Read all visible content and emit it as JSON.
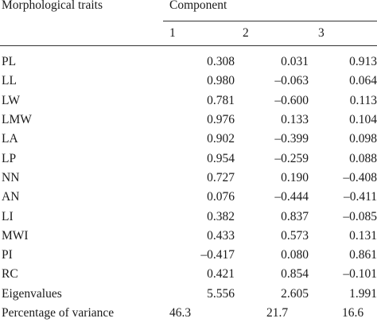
{
  "header": {
    "trait_label": "Morphological traits",
    "component_label": "Component",
    "columns": [
      "1",
      "2",
      "3"
    ]
  },
  "rows": [
    {
      "trait": "PL",
      "v": [
        "0.308",
        "0.031",
        "0.913"
      ]
    },
    {
      "trait": "LL",
      "v": [
        "0.980",
        "–0.063",
        "0.064"
      ]
    },
    {
      "trait": "LW",
      "v": [
        "0.781",
        "–0.600",
        "0.113"
      ]
    },
    {
      "trait": "LMW",
      "v": [
        "0.976",
        "0.133",
        "0.104"
      ]
    },
    {
      "trait": "LA",
      "v": [
        "0.902",
        "–0.399",
        "0.098"
      ]
    },
    {
      "trait": "LP",
      "v": [
        "0.954",
        "–0.259",
        "0.088"
      ]
    },
    {
      "trait": "NN",
      "v": [
        "0.727",
        "0.190",
        "–0.408"
      ]
    },
    {
      "trait": "AN",
      "v": [
        "0.076",
        "–0.444",
        "–0.411"
      ]
    },
    {
      "trait": "LI",
      "v": [
        "0.382",
        "0.837",
        "–0.085"
      ]
    },
    {
      "trait": "MWI",
      "v": [
        "0.433",
        "0.573",
        "0.131"
      ]
    },
    {
      "trait": "PI",
      "v": [
        "–0.417",
        "0.080",
        "0.861"
      ]
    },
    {
      "trait": "RC",
      "v": [
        "0.421",
        "0.854",
        "–0.101"
      ]
    },
    {
      "trait": "Eigenvalues",
      "v": [
        "5.556",
        "2.605",
        "1.991"
      ]
    },
    {
      "trait": "Percentage of variance",
      "v": [
        "46.3",
        "21.7",
        "16.6"
      ]
    }
  ]
}
